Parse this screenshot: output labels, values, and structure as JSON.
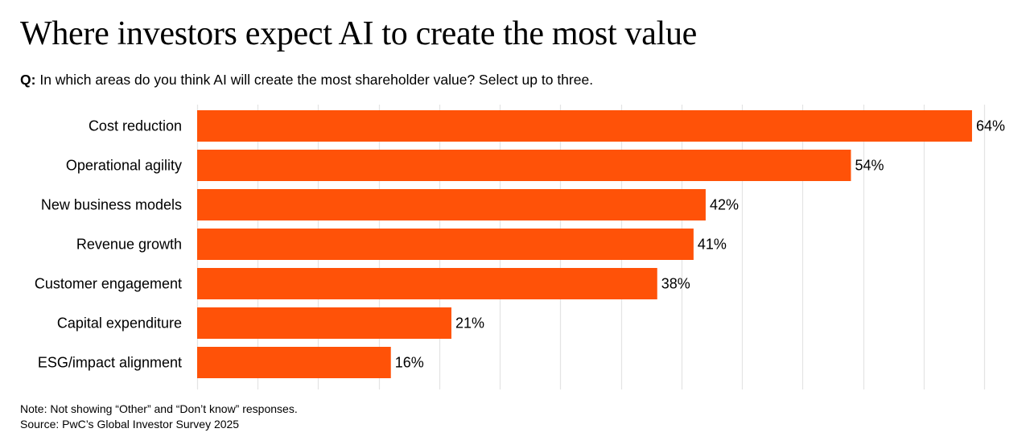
{
  "header": {
    "title": "Where investors expect AI to create the most value",
    "question_prefix": "Q:",
    "question_text": "In which areas do you think AI will create the most shareholder value? Select up to three."
  },
  "footer": {
    "note": "Note: Not showing “Other” and “Don’t know” responses.",
    "source": "Source: PwC’s Global Investor Survey 2025"
  },
  "colors": {
    "bar": "#ff5208",
    "grid": "#e4e4e4",
    "text": "#000000"
  },
  "chart_data": {
    "type": "bar",
    "orientation": "horizontal",
    "title": "Where investors expect AI to create the most value",
    "xlabel": "",
    "ylabel": "",
    "categories": [
      "Cost reduction",
      "Operational agility",
      "New business models",
      "Revenue growth",
      "Customer engagement",
      "Capital expenditure",
      "ESG/impact alignment"
    ],
    "values": [
      64,
      54,
      42,
      41,
      38,
      21,
      16
    ],
    "value_labels": [
      "64%",
      "54%",
      "42%",
      "41%",
      "38%",
      "21%",
      "16%"
    ],
    "xlim": [
      0,
      65
    ],
    "grid": true,
    "grid_step": 5,
    "unit": "%"
  }
}
